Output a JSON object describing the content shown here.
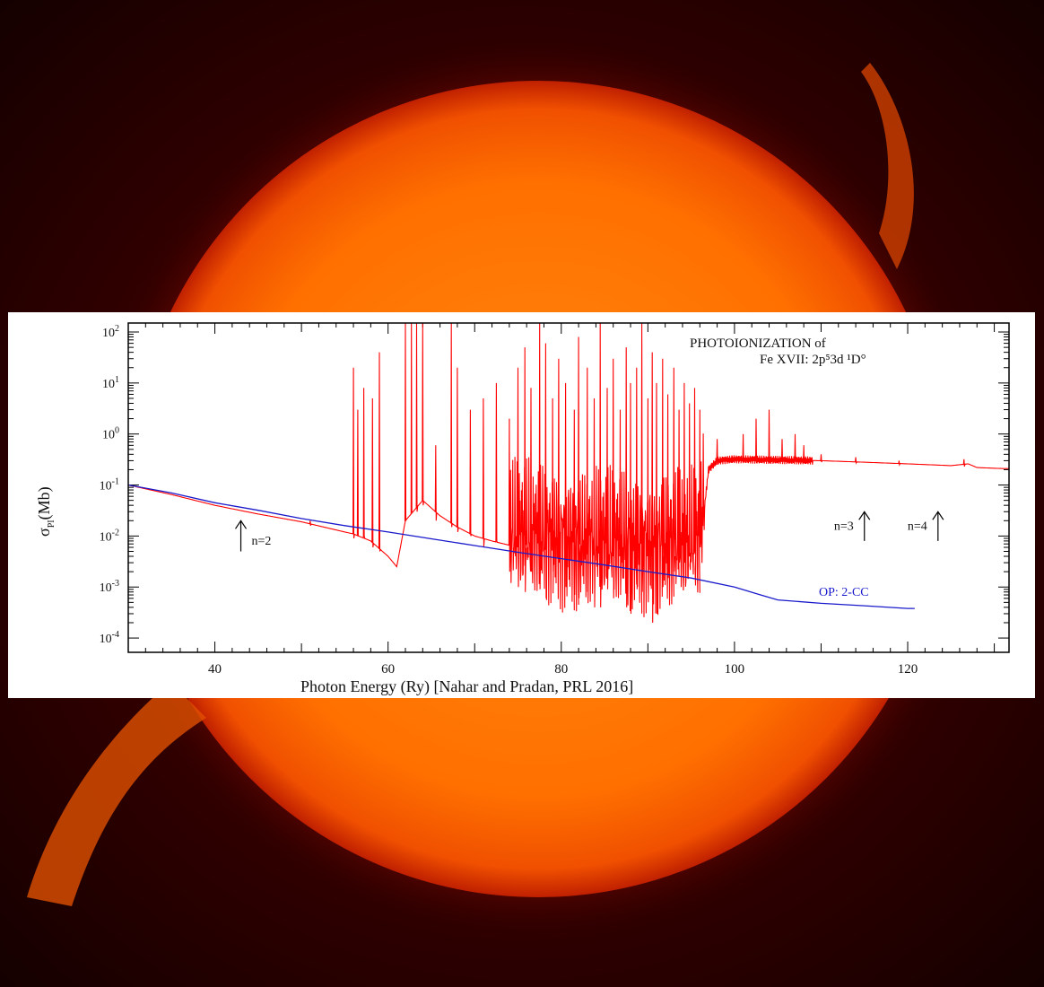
{
  "colors": {
    "red_series": "#ff0000",
    "blue_series": "#1a1acc",
    "background_sun": "#ff7a00"
  },
  "chart_data": {
    "type": "line",
    "title": "PHOTOIONIZATION of",
    "subtitle": "Fe XVII: 2p⁵3d ¹D°",
    "xlabel": "Photon Energy (Ry) [Nahar and Pradan, PRL 2016]",
    "ylabel": "σ",
    "ylabel_sub": "PI",
    "ylabel_unit": "(Mb)",
    "xlim": [
      30,
      131.7
    ],
    "ylim": [
      0.0001,
      150
    ],
    "yscale": "log",
    "xticks": [
      40,
      60,
      80,
      100,
      120
    ],
    "xtick_labels": [
      "40",
      "60",
      "80",
      "100",
      "120"
    ],
    "yticks": [
      0.0001,
      0.001,
      0.01,
      0.1,
      1,
      10,
      100
    ],
    "ytick_labels": [
      [
        "10",
        "-4"
      ],
      [
        "10",
        "-3"
      ],
      [
        "10",
        "-2"
      ],
      [
        "10",
        "-1"
      ],
      [
        "10",
        "0"
      ],
      [
        "10",
        "1"
      ],
      [
        "10",
        "2"
      ]
    ],
    "grid": false,
    "series": [
      {
        "color": "#ff0000",
        "continuum": [
          [
            30,
            0.1
          ],
          [
            35,
            0.065
          ],
          [
            40,
            0.04
          ],
          [
            45,
            0.027
          ],
          [
            50,
            0.019
          ],
          [
            55,
            0.012
          ],
          [
            56,
            0.011
          ],
          [
            58,
            0.008
          ],
          [
            60,
            0.004
          ],
          [
            61,
            0.0025
          ],
          [
            62,
            0.02
          ],
          [
            64,
            0.05
          ],
          [
            66,
            0.025
          ],
          [
            68,
            0.015
          ],
          [
            70,
            0.01
          ],
          [
            72,
            0.008
          ],
          [
            75,
            0.006
          ],
          [
            80,
            0.005
          ],
          [
            85,
            0.004
          ],
          [
            90,
            0.004
          ],
          [
            95,
            0.004
          ],
          [
            96,
            0.005
          ],
          [
            97,
            0.2
          ],
          [
            98,
            0.3
          ],
          [
            100,
            0.32
          ],
          [
            105,
            0.31
          ],
          [
            110,
            0.3
          ],
          [
            115,
            0.28
          ],
          [
            120,
            0.26
          ],
          [
            125,
            0.24
          ],
          [
            127,
            0.26
          ],
          [
            128,
            0.22
          ],
          [
            131,
            0.21
          ]
        ],
        "resonances": [
          [
            51,
            0.02,
            0.016
          ],
          [
            56,
            20,
            0.009
          ],
          [
            56.5,
            3,
            0.01
          ],
          [
            57.2,
            8,
            0.01
          ],
          [
            58.2,
            5,
            0.006
          ],
          [
            59,
            40,
            0.005
          ],
          [
            62,
            150,
            0.02
          ],
          [
            62.7,
            150,
            0.03
          ],
          [
            63.3,
            150,
            0.03
          ],
          [
            64,
            150,
            0.04
          ],
          [
            65.5,
            0.6,
            0.02
          ],
          [
            67.3,
            150,
            0.015
          ],
          [
            68,
            20,
            0.012
          ],
          [
            69.5,
            3,
            0.01
          ],
          [
            71,
            5,
            0.006
          ],
          [
            72.5,
            10,
            0.008
          ],
          [
            74,
            2,
            0.002
          ],
          [
            75,
            20,
            0.001
          ],
          [
            75.8,
            50,
            0.0008
          ],
          [
            76.5,
            8,
            0.002
          ],
          [
            77.5,
            150,
            0.0009
          ],
          [
            78.2,
            60,
            0.0006
          ],
          [
            79,
            5,
            0.002
          ],
          [
            79.7,
            30,
            0.003
          ],
          [
            80.5,
            10,
            0.001
          ],
          [
            81.5,
            3,
            0.0007
          ],
          [
            82,
            80,
            0.0006
          ],
          [
            83,
            20,
            0.0008
          ],
          [
            83.8,
            5,
            0.0004
          ],
          [
            84.5,
            150,
            0.0004
          ],
          [
            85.3,
            8,
            0.0009
          ],
          [
            86,
            30,
            0.0006
          ],
          [
            86.8,
            3,
            0.0007
          ],
          [
            87.5,
            50,
            0.0004
          ],
          [
            88,
            10,
            0.0003
          ],
          [
            88.7,
            20,
            0.0009
          ],
          [
            89.3,
            150,
            0.0008
          ],
          [
            90,
            5,
            0.0005
          ],
          [
            90.5,
            40,
            0.0002
          ],
          [
            91,
            10,
            0.0003
          ],
          [
            91.7,
            30,
            0.001
          ],
          [
            92.3,
            6,
            0.0015
          ],
          [
            93,
            20,
            0.002
          ],
          [
            93.6,
            3,
            0.003
          ],
          [
            94.2,
            10,
            0.003
          ],
          [
            94.8,
            4,
            0.004
          ],
          [
            95.4,
            8,
            0.005
          ],
          [
            96,
            3,
            0.006
          ],
          [
            98,
            0.8,
            0.25
          ],
          [
            101,
            1,
            0.28
          ],
          [
            102.5,
            2,
            0.27
          ],
          [
            104,
            3,
            0.27
          ],
          [
            105.5,
            0.8,
            0.28
          ],
          [
            107,
            1,
            0.28
          ],
          [
            108,
            0.6,
            0.27
          ],
          [
            110,
            0.4,
            0.28
          ],
          [
            114,
            0.35,
            0.27
          ],
          [
            119,
            0.3,
            0.25
          ],
          [
            126.5,
            0.32,
            0.23
          ]
        ]
      },
      {
        "name": "OP: 2-CC",
        "color": "#1a1acc",
        "points": [
          [
            30,
            0.1
          ],
          [
            35,
            0.07
          ],
          [
            40,
            0.045
          ],
          [
            45,
            0.032
          ],
          [
            50,
            0.022
          ],
          [
            55,
            0.016
          ],
          [
            60,
            0.012
          ],
          [
            65,
            0.0088
          ],
          [
            70,
            0.0065
          ],
          [
            75,
            0.0048
          ],
          [
            80,
            0.0036
          ],
          [
            85,
            0.0027
          ],
          [
            90,
            0.002
          ],
          [
            95,
            0.0015
          ],
          [
            100,
            0.001
          ],
          [
            103,
            0.0007
          ],
          [
            105,
            0.00056
          ],
          [
            110,
            0.00048
          ],
          [
            115,
            0.00043
          ],
          [
            120,
            0.00038
          ],
          [
            120.8,
            0.00038
          ]
        ]
      }
    ],
    "annotations": [
      {
        "text": "n=2",
        "x": 43,
        "arrow_from": 0.005,
        "arrow_to": 0.02
      },
      {
        "text": "n=3",
        "x": 115,
        "arrow_from": 0.008,
        "arrow_to": 0.03
      },
      {
        "text": "n=4",
        "x": 123.5,
        "arrow_from": 0.008,
        "arrow_to": 0.03
      }
    ],
    "legend_label": "OP: 2-CC"
  }
}
